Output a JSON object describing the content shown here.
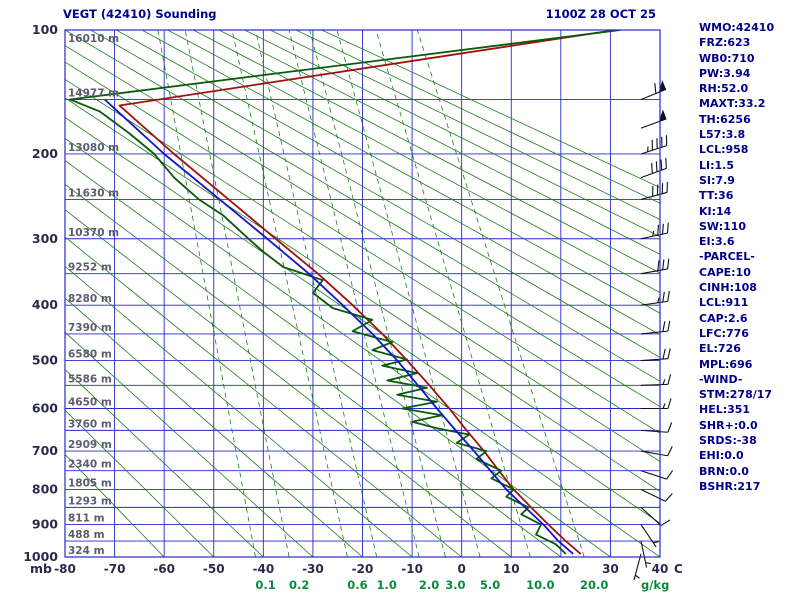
{
  "header": {
    "title": "VEGT (42410) Sounding",
    "timestamp": "1100Z 28 OCT 25"
  },
  "indices": [
    "WMO:42410",
    "FRZ:623",
    "WB0:710",
    "PW:3.94",
    "RH:52.0",
    "MAXT:33.2",
    "TH:6256",
    "L57:3.8",
    "LCL:958",
    "LI:1.5",
    "SI:7.9",
    "TT:36",
    "KI:14",
    "SW:110",
    "EI:3.6",
    "-PARCEL-",
    "CAPE:10",
    "CINH:108",
    "LCL:911",
    "CAP:2.6",
    "LFC:776",
    "EL:726",
    "MPL:696",
    "-WIND-",
    "STM:278/17",
    "HEL:351",
    "SHR+:0.0",
    "SRDS:-38",
    "EHI:0.0",
    "BRN:0.0",
    "BSHR:217"
  ],
  "chart_data": {
    "type": "line",
    "diagram": "stuve_sounding",
    "title": "VEGT (42410) Sounding",
    "timestamp": "1100Z 28 OCT 25",
    "pressure_axis": {
      "unit": "mb",
      "major_ticks": [
        100,
        200,
        300,
        400,
        500,
        600,
        700,
        800,
        900,
        1000
      ],
      "levels": [
        100,
        150,
        200,
        250,
        300,
        350,
        400,
        450,
        500,
        550,
        600,
        650,
        700,
        750,
        800,
        850,
        900,
        950,
        1000
      ],
      "heights_m": [
        16010,
        14977,
        13080,
        11630,
        10370,
        9252,
        8280,
        7390,
        6580,
        5586,
        4650,
        3760,
        2909,
        2340,
        1805,
        1293,
        811,
        488,
        324
      ]
    },
    "temp_axis": {
      "unit": "C",
      "ticks": [
        -80,
        -70,
        -60,
        -50,
        -40,
        -30,
        -20,
        -10,
        0,
        10,
        20,
        30,
        40
      ],
      "range": [
        -80,
        40
      ]
    },
    "mixing_ratio_lines": {
      "unit": "g/kg",
      "values": [
        0.1,
        0.2,
        0.6,
        1.0,
        2.0,
        3.0,
        5.0,
        10.0,
        20.0
      ]
    },
    "dry_adiabats_theta_c": {
      "min": -60,
      "max": 200,
      "step": 10
    },
    "series": [
      {
        "name": "temperature",
        "color": "#a01010",
        "points": [
          [
            990,
            24
          ],
          [
            950,
            21
          ],
          [
            900,
            17.5
          ],
          [
            850,
            14
          ],
          [
            800,
            10.5
          ],
          [
            750,
            7.5
          ],
          [
            700,
            4.5
          ],
          [
            650,
            1
          ],
          [
            600,
            -2.5
          ],
          [
            550,
            -6.5
          ],
          [
            500,
            -11
          ],
          [
            450,
            -16
          ],
          [
            400,
            -22
          ],
          [
            350,
            -29
          ],
          [
            300,
            -37.5
          ],
          [
            250,
            -47
          ],
          [
            200,
            -58
          ],
          [
            155,
            -69
          ],
          [
            100,
            31
          ]
        ]
      },
      {
        "name": "dewpoint",
        "color": "#0a5a0a",
        "points": [
          [
            990,
            21
          ],
          [
            960,
            19
          ],
          [
            930,
            15
          ],
          [
            900,
            16
          ],
          [
            870,
            12
          ],
          [
            850,
            13.5
          ],
          [
            820,
            9
          ],
          [
            800,
            10.5
          ],
          [
            770,
            6
          ],
          [
            750,
            8
          ],
          [
            720,
            3
          ],
          [
            700,
            5
          ],
          [
            680,
            -1
          ],
          [
            660,
            1.5
          ],
          [
            645,
            -5
          ],
          [
            630,
            -10
          ],
          [
            615,
            -4
          ],
          [
            600,
            -12
          ],
          [
            585,
            -5
          ],
          [
            570,
            -13
          ],
          [
            555,
            -7
          ],
          [
            540,
            -15
          ],
          [
            525,
            -9
          ],
          [
            510,
            -16
          ],
          [
            498,
            -11
          ],
          [
            480,
            -18
          ],
          [
            465,
            -14
          ],
          [
            445,
            -22
          ],
          [
            425,
            -18
          ],
          [
            405,
            -26
          ],
          [
            380,
            -30
          ],
          [
            360,
            -28
          ],
          [
            340,
            -36
          ],
          [
            318,
            -40
          ],
          [
            300,
            -43
          ],
          [
            270,
            -48
          ],
          [
            250,
            -53
          ],
          [
            225,
            -58
          ],
          [
            200,
            -62
          ],
          [
            180,
            -67
          ],
          [
            160,
            -73
          ],
          [
            150,
            -79
          ],
          [
            100,
            32
          ]
        ]
      },
      {
        "name": "wetbulb",
        "color": "#1414cc",
        "points": [
          [
            990,
            22.5
          ],
          [
            950,
            19.5
          ],
          [
            900,
            16.5
          ],
          [
            850,
            12.8
          ],
          [
            800,
            9
          ],
          [
            750,
            5.8
          ],
          [
            700,
            2.5
          ],
          [
            650,
            -1.2
          ],
          [
            600,
            -5
          ],
          [
            550,
            -8.8
          ],
          [
            500,
            -13
          ],
          [
            450,
            -18
          ],
          [
            400,
            -24
          ],
          [
            350,
            -30.8
          ],
          [
            300,
            -39.2
          ],
          [
            250,
            -48.8
          ],
          [
            200,
            -60
          ],
          [
            150,
            -72
          ]
        ]
      }
    ],
    "winds_p_dir_spd": [
      [
        150,
        248,
        60
      ],
      [
        175,
        250,
        50
      ],
      [
        200,
        252,
        45
      ],
      [
        225,
        250,
        40
      ],
      [
        250,
        255,
        40
      ],
      [
        300,
        258,
        35
      ],
      [
        350,
        260,
        30
      ],
      [
        400,
        262,
        25
      ],
      [
        450,
        264,
        20
      ],
      [
        500,
        266,
        20
      ],
      [
        550,
        268,
        15
      ],
      [
        600,
        270,
        15
      ],
      [
        650,
        274,
        10
      ],
      [
        700,
        280,
        10
      ],
      [
        750,
        288,
        10
      ],
      [
        800,
        296,
        8
      ],
      [
        850,
        312,
        10
      ],
      [
        900,
        326,
        5
      ],
      [
        950,
        348,
        5
      ],
      [
        990,
        15,
        5
      ]
    ],
    "colors": {
      "grid": "#2929c8",
      "adiabat": "#1e7d1e",
      "trace_temp": "#a01010",
      "trace_dew": "#0a5a0a",
      "trace_wet": "#1414cc",
      "text": "#00008b",
      "axis_text": "#2a2a4a",
      "height_text": "#5c5c70",
      "mixing_text": "#0a8a3c",
      "barb": "#111111"
    }
  }
}
